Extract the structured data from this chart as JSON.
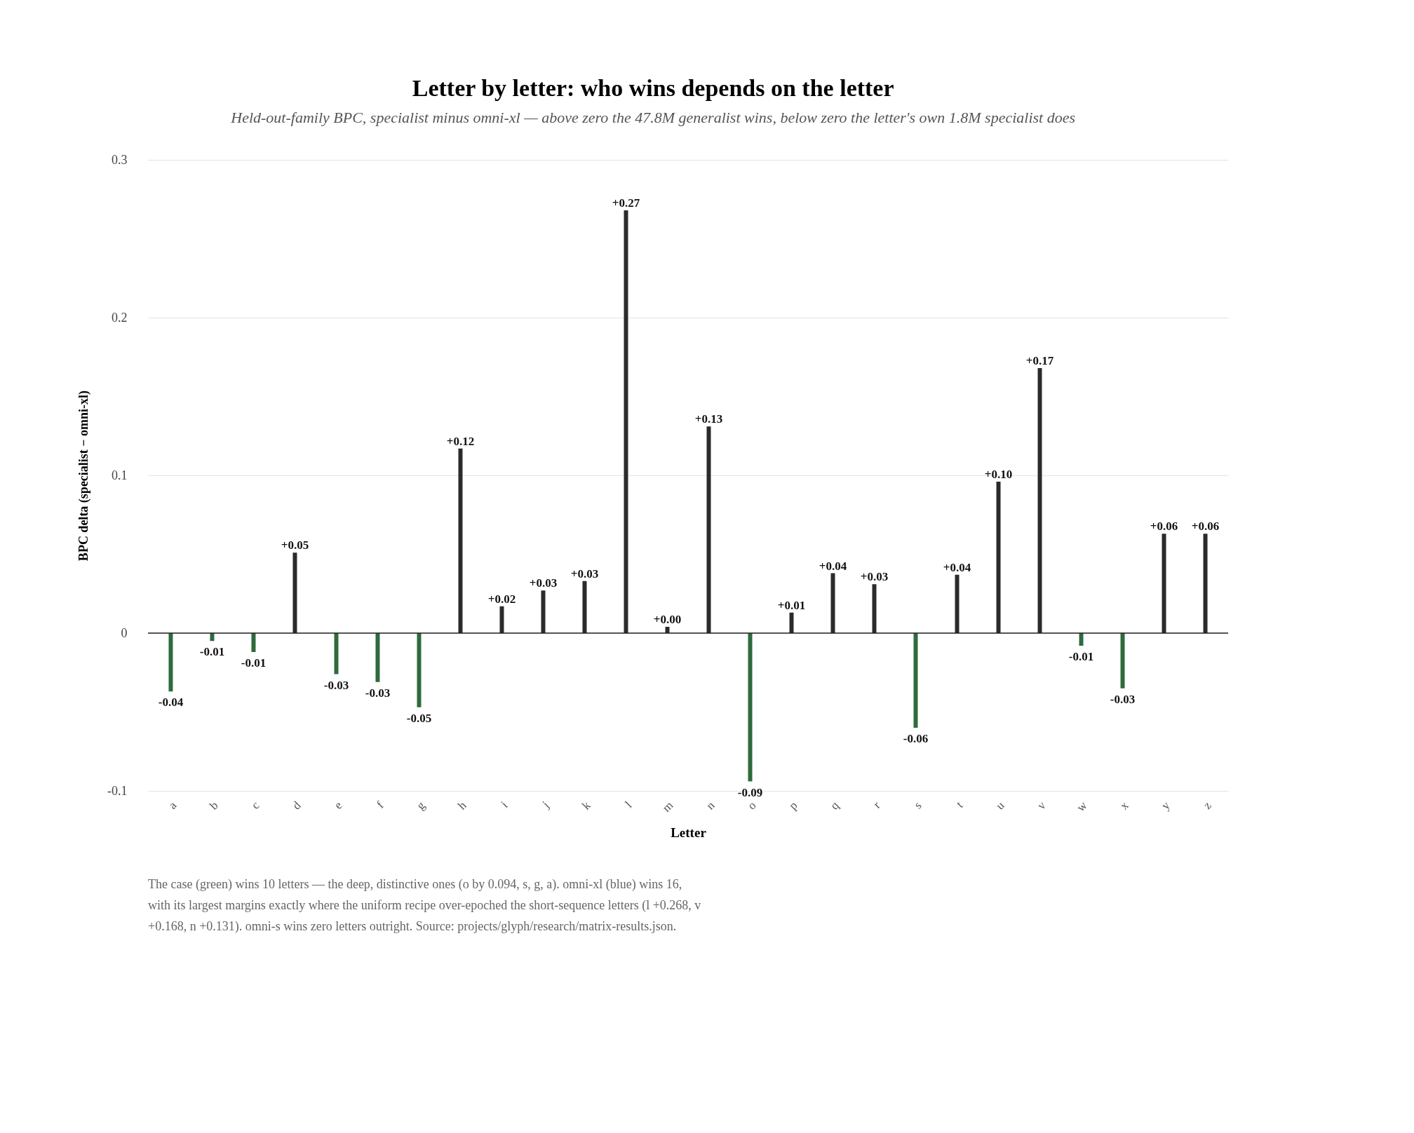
{
  "chart_data": {
    "type": "bar",
    "title": "Letter by letter: who wins depends on the letter",
    "subtitle": "Held-out-family BPC, specialist minus omni-xl — above zero the 47.8M generalist wins, below zero the letter's own 1.8M specialist does",
    "xlabel": "Letter",
    "ylabel": "BPC delta (specialist − omni-xl)",
    "categories": [
      "a",
      "b",
      "c",
      "d",
      "e",
      "f",
      "g",
      "h",
      "i",
      "j",
      "k",
      "l",
      "m",
      "n",
      "o",
      "p",
      "q",
      "r",
      "s",
      "t",
      "u",
      "v",
      "w",
      "x",
      "y",
      "z"
    ],
    "values": [
      -0.037,
      -0.005,
      -0.012,
      0.051,
      -0.026,
      -0.031,
      -0.047,
      0.117,
      0.017,
      0.027,
      0.033,
      0.268,
      0.004,
      0.131,
      -0.094,
      0.013,
      0.038,
      0.031,
      -0.06,
      0.037,
      0.096,
      0.168,
      -0.008,
      -0.035,
      0.063,
      0.063
    ],
    "value_labels": [
      "-0.04",
      "-0.01",
      "-0.01",
      "+0.05",
      "-0.03",
      "-0.03",
      "-0.05",
      "+0.12",
      "+0.02",
      "+0.03",
      "+0.03",
      "+0.27",
      "+0.00",
      "+0.13",
      "-0.09",
      "+0.01",
      "+0.04",
      "+0.03",
      "-0.06",
      "+0.04",
      "+0.10",
      "+0.17",
      "-0.01",
      "-0.03",
      "+0.06",
      "+0.06"
    ],
    "colors": [
      "#2e6b3c",
      "#2e6b3c",
      "#2e6b3c",
      "#2b2b2b",
      "#2e6b3c",
      "#2e6b3c",
      "#2e6b3c",
      "#2b2b2b",
      "#2b2b2b",
      "#2b2b2b",
      "#2b2b2b",
      "#2b2b2b",
      "#2b2b2b",
      "#2b2b2b",
      "#2e6b3c",
      "#2b2b2b",
      "#2b2b2b",
      "#2b2b2b",
      "#2e6b3c",
      "#2b2b2b",
      "#2b2b2b",
      "#2b2b2b",
      "#2e6b3c",
      "#2e6b3c",
      "#2b2b2b",
      "#2b2b2b"
    ],
    "ylim": [
      -0.1,
      0.3
    ],
    "yticks": [
      -0.1,
      0,
      0.1,
      0.2,
      0.3
    ],
    "grid": "y",
    "ref_lines": [
      {
        "axis": "y",
        "value": 0,
        "color": "#222222"
      }
    ],
    "annotations": [
      "The case (green) wins 10 letters — the deep, distinctive ones (o by 0.094, s, g, a). omni-xl (blue) wins 16, with its largest margins exactly where the uniform recipe over-epoched the short-sequence letters (l +0.268, v +0.168, n +0.131). omni-s wins zero letters outright. Source: projects/glyph/research/matrix-results.json."
    ]
  }
}
